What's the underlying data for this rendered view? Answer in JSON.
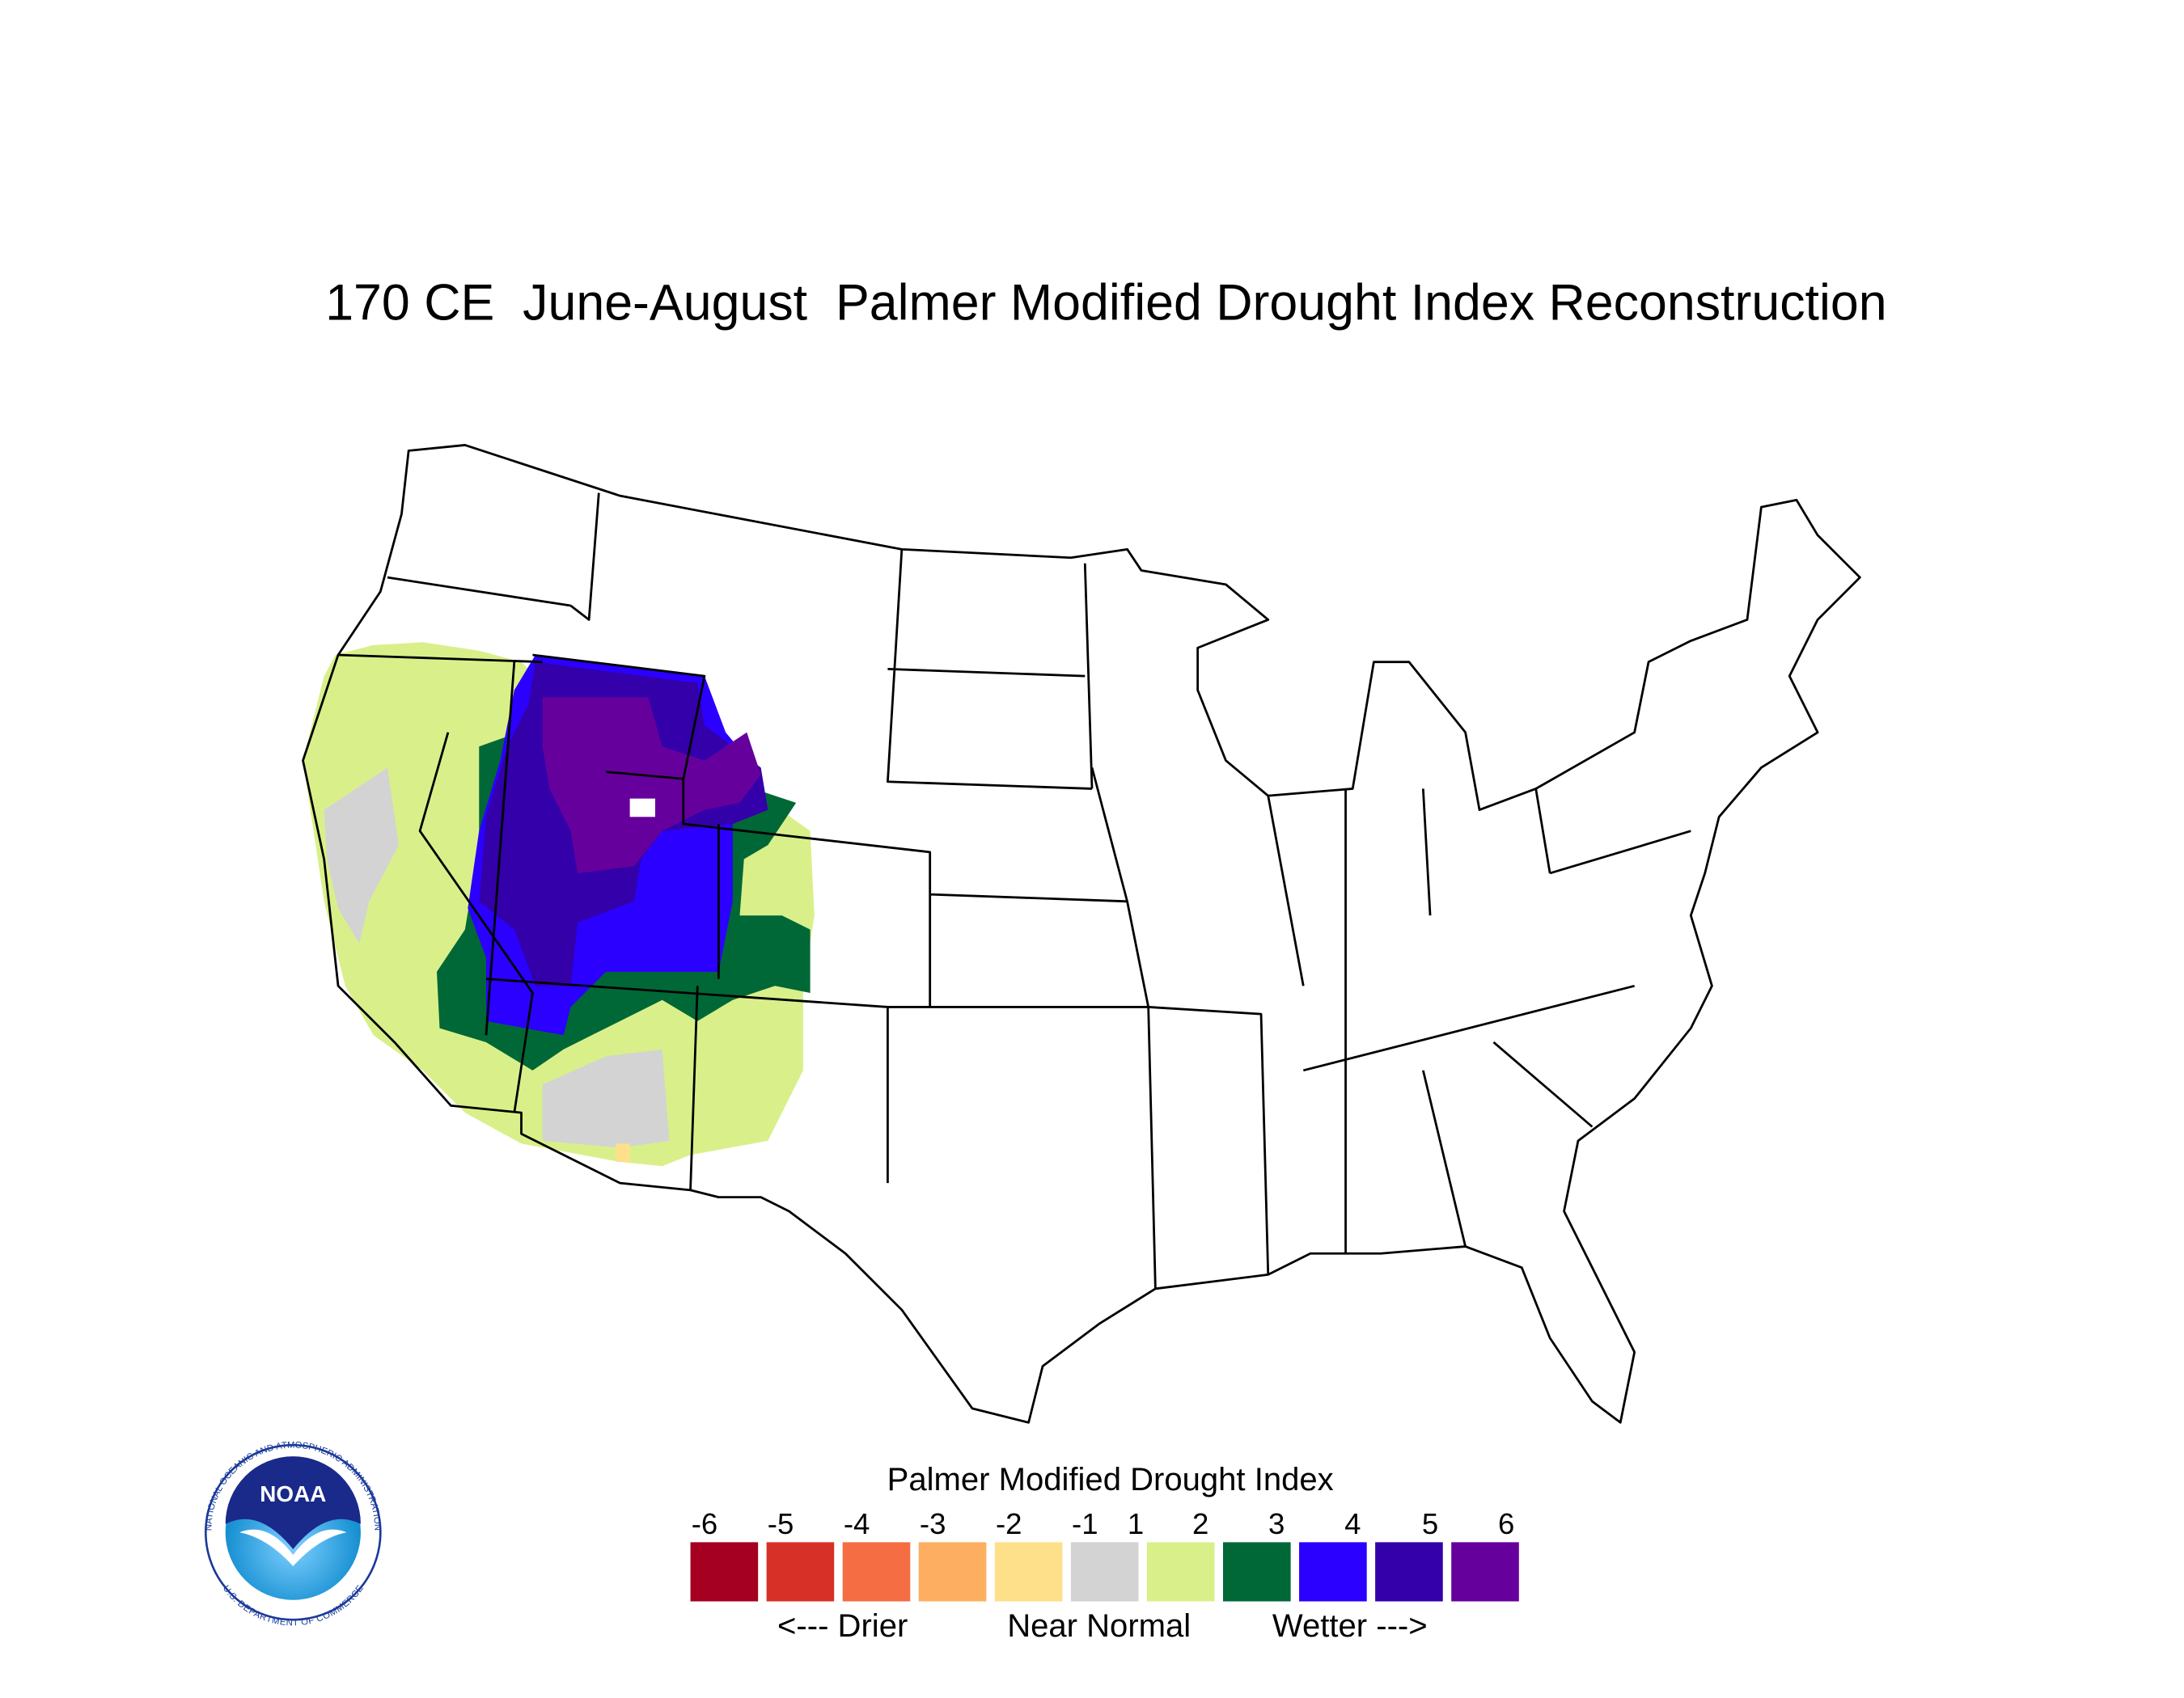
{
  "title": "170 CE  June-August  Palmer Modified Drought Index Reconstruction",
  "legend": {
    "title": "Palmer Modified Drought Index",
    "ticks": [
      -6,
      -5,
      -4,
      -3,
      -2,
      -1,
      1,
      2,
      3,
      4,
      5,
      6
    ],
    "colors": [
      "#a50021",
      "#d73027",
      "#f46d43",
      "#fdae61",
      "#fee08b",
      "#d3d3d3",
      "#d9f08a",
      "#006837",
      "#2b00ff",
      "#3300aa",
      "#66009c"
    ],
    "labels": [
      "<--- Drier",
      "Near Normal",
      "Wetter --->"
    ]
  },
  "logo": {
    "text": "NOAA",
    "ring_top": "NATIONAL OCEANIC AND ATMOSPHERIC ADMINISTRATION",
    "ring_bottom": "U.S. DEPARTMENT OF COMMERCE"
  }
}
